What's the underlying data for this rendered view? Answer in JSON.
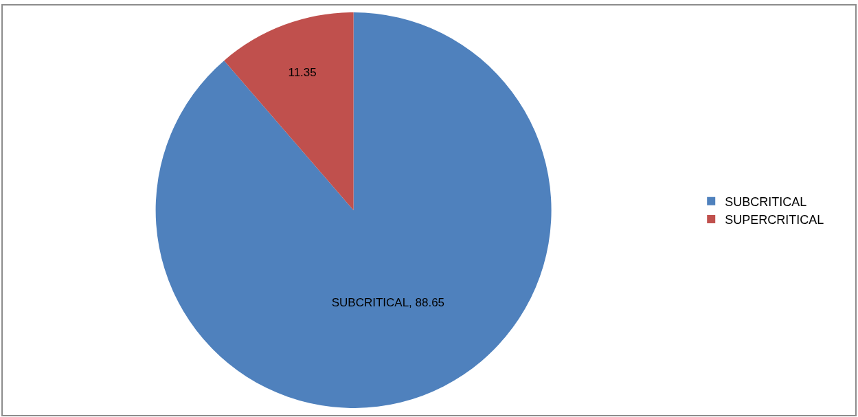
{
  "chart_data": {
    "type": "pie",
    "categories": [
      "SUBCRITICAL",
      "SUPERCRITICAL"
    ],
    "values": [
      88.65,
      11.35
    ],
    "colors": [
      "#4f81bd",
      "#c0504d"
    ],
    "value_labels": [
      "SUBCRITICAL, 88.65",
      "11.35"
    ],
    "legend": "right"
  }
}
